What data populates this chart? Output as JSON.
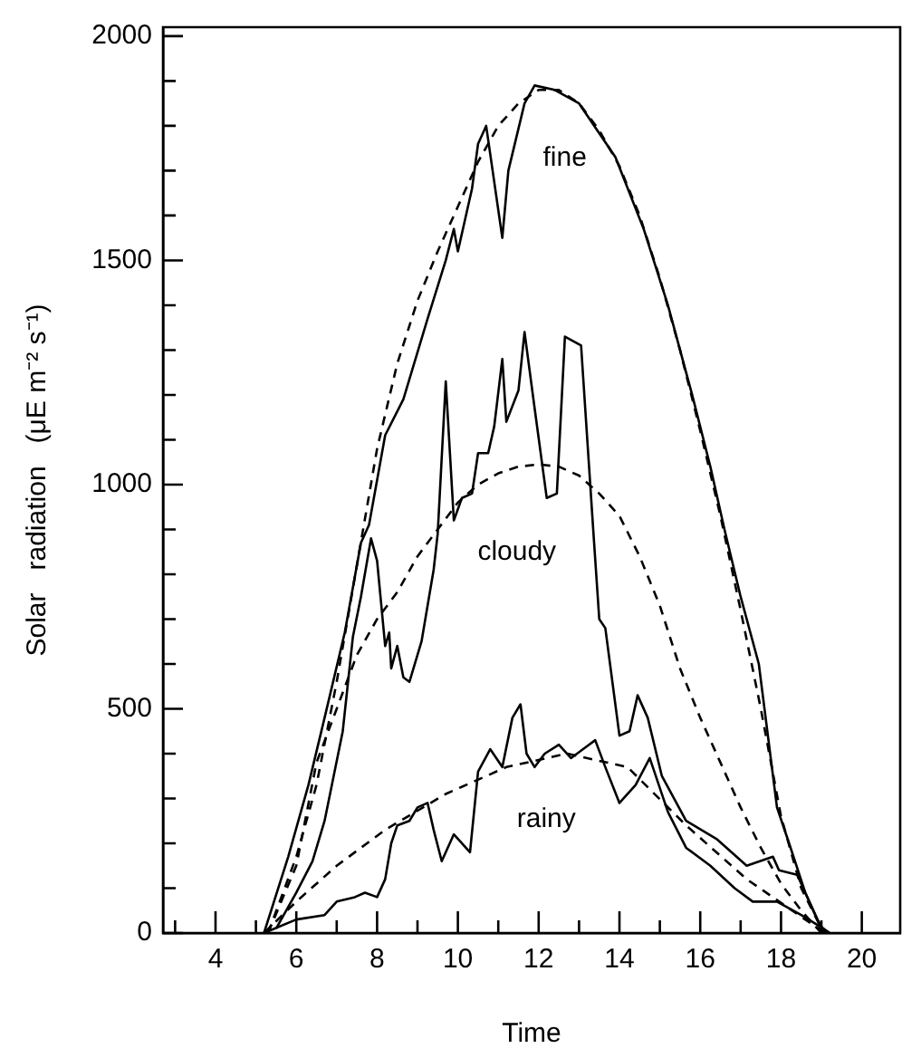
{
  "chart_data": {
    "type": "line",
    "xlabel": "Time",
    "ylabel": "Solar   radiation   (μE m⁻² s⁻¹)",
    "xlim": [
      2.7,
      20.95
    ],
    "ylim": [
      0,
      2020
    ],
    "xticks": [
      {
        "value": 3,
        "label": null
      },
      4,
      {
        "value": 5,
        "label": null
      },
      6,
      {
        "value": 7,
        "label": null
      },
      8,
      {
        "value": 9,
        "label": null
      },
      10,
      {
        "value": 11,
        "label": null
      },
      12,
      {
        "value": 13,
        "label": null
      },
      14,
      {
        "value": 15,
        "label": null
      },
      16,
      {
        "value": 17,
        "label": null
      },
      18,
      {
        "value": 19,
        "label": null
      },
      20
    ],
    "yticks": [
      0,
      {
        "value": 100,
        "label": null
      },
      {
        "value": 200,
        "label": null
      },
      {
        "value": 300,
        "label": null
      },
      {
        "value": 400,
        "label": null
      },
      500,
      {
        "value": 600,
        "label": null
      },
      {
        "value": 700,
        "label": null
      },
      {
        "value": 800,
        "label": null
      },
      {
        "value": 900,
        "label": null
      },
      1000,
      {
        "value": 1100,
        "label": null
      },
      {
        "value": 1200,
        "label": null
      },
      {
        "value": 1300,
        "label": null
      },
      {
        "value": 1400,
        "label": null
      },
      1500,
      {
        "value": 1600,
        "label": null
      },
      {
        "value": 1700,
        "label": null
      },
      {
        "value": 1800,
        "label": null
      },
      {
        "value": 1900,
        "label": null
      },
      2000
    ],
    "grid": false,
    "legend": false,
    "marker": "none",
    "series": [
      {
        "color": "#000000",
        "line_style": "solid",
        "x": [
          5.2,
          5.8,
          6.3,
          6.7,
          7.2,
          7.6,
          7.8,
          8.2,
          8.65,
          9.25,
          9.7,
          9.9,
          10,
          10.35,
          10.5,
          10.7,
          11.1,
          11.25,
          11.65,
          11.9,
          12.4,
          13,
          13.9,
          14.6,
          15.2,
          15.8,
          16.25,
          16.6,
          17,
          17.45,
          17.9,
          18.2,
          18.6,
          19,
          19.2
        ],
        "values": [
          0,
          170,
          330,
          480,
          670,
          870,
          910,
          1110,
          1190,
          1370,
          1500,
          1570,
          1520,
          1660,
          1760,
          1800,
          1550,
          1700,
          1850,
          1890,
          1880,
          1850,
          1730,
          1570,
          1400,
          1200,
          1040,
          900,
          750,
          600,
          280,
          200,
          90,
          10,
          0
        ]
      },
      {
        "color": "#000000",
        "line_style": "dashed",
        "x": [
          5.3,
          6,
          6.5,
          7,
          7.5,
          8,
          8.5,
          9,
          9.5,
          10,
          10.5,
          11,
          11.5,
          12,
          12.5,
          13,
          13.5,
          14,
          14.5,
          15,
          15.5,
          16,
          16.5,
          17,
          17.5,
          18,
          18.5,
          19,
          19.1
        ],
        "values": [
          0,
          170,
          330,
          560,
          820,
          1080,
          1270,
          1410,
          1520,
          1620,
          1720,
          1800,
          1850,
          1880,
          1880,
          1850,
          1790,
          1710,
          1600,
          1460,
          1300,
          1120,
          930,
          720,
          500,
          260,
          100,
          10,
          0
        ]
      },
      {
        "color": "#000000",
        "line_style": "solid",
        "x": [
          5.5,
          6,
          6.4,
          6.7,
          7.15,
          7.4,
          7.6,
          7.85,
          8,
          8.2,
          8.3,
          8.35,
          8.5,
          8.65,
          8.8,
          9.1,
          9.4,
          9.5,
          9.7,
          9.9,
          10.1,
          10.35,
          10.5,
          10.75,
          10.9,
          11.1,
          11.2,
          11.5,
          11.65,
          11.9,
          12.2,
          12.45,
          12.65,
          13.05,
          13.35,
          13.5,
          13.65,
          14,
          14.25,
          14.45,
          14.7,
          15.05,
          15.65,
          16.4,
          17.15,
          17.8,
          17.95,
          18.4,
          18.6,
          18.9,
          19.1
        ],
        "values": [
          10,
          90,
          160,
          250,
          450,
          660,
          750,
          880,
          830,
          640,
          670,
          590,
          640,
          570,
          560,
          650,
          810,
          890,
          1230,
          920,
          970,
          980,
          1070,
          1070,
          1130,
          1280,
          1140,
          1210,
          1340,
          1170,
          970,
          980,
          1330,
          1310,
          900,
          700,
          680,
          440,
          450,
          530,
          480,
          350,
          250,
          210,
          150,
          170,
          140,
          130,
          90,
          30,
          0
        ]
      },
      {
        "color": "#000000",
        "line_style": "dashed",
        "x": [
          5.3,
          6,
          6.5,
          7,
          7.5,
          8,
          8.5,
          9,
          9.5,
          10,
          10.5,
          11,
          11.5,
          12,
          12.5,
          13,
          13.5,
          14,
          14.5,
          15,
          15.5,
          16,
          16.5,
          17,
          17.5,
          18,
          18.5,
          19
        ],
        "values": [
          0,
          150,
          380,
          500,
          620,
          700,
          760,
          840,
          900,
          960,
          1000,
          1025,
          1040,
          1045,
          1040,
          1020,
          980,
          930,
          840,
          730,
          590,
          480,
          380,
          280,
          190,
          110,
          50,
          0
        ]
      },
      {
        "color": "#000000",
        "line_style": "solid",
        "x": [
          5.2,
          6,
          6.7,
          7,
          7.45,
          7.7,
          8,
          8.2,
          8.35,
          8.5,
          8.8,
          9,
          9.25,
          9.4,
          9.6,
          9.9,
          10.3,
          10.5,
          10.8,
          11.1,
          11.35,
          11.55,
          11.7,
          11.9,
          12.15,
          12.5,
          12.8,
          13.1,
          13.4,
          13.65,
          14,
          14.4,
          14.75,
          15.2,
          15.65,
          16.25,
          16.85,
          17.3,
          17.9,
          18.5,
          19.05,
          19.2
        ],
        "values": [
          0,
          30,
          40,
          70,
          80,
          90,
          80,
          120,
          200,
          240,
          250,
          280,
          290,
          230,
          160,
          220,
          180,
          360,
          410,
          370,
          480,
          510,
          400,
          370,
          400,
          420,
          390,
          410,
          430,
          370,
          290,
          330,
          390,
          270,
          190,
          150,
          100,
          70,
          70,
          40,
          10,
          0
        ]
      },
      {
        "color": "#000000",
        "line_style": "dashed",
        "x": [
          5.2,
          6,
          7,
          8.2,
          9.7,
          11.2,
          12.7,
          14.2,
          15.65,
          17.15,
          18.6,
          19.1
        ],
        "values": [
          0,
          70,
          150,
          230,
          310,
          370,
          400,
          370,
          240,
          120,
          30,
          0
        ]
      }
    ],
    "annotations": [
      "fine",
      "cloudy",
      "rainy"
    ]
  }
}
